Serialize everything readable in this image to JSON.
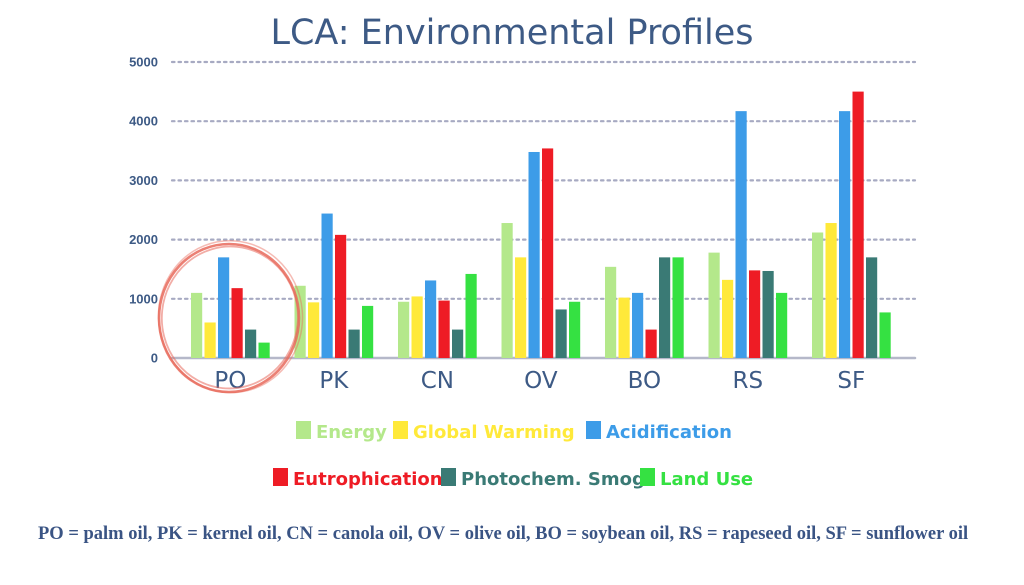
{
  "chart_data": {
    "type": "bar",
    "title": "LCA: Environmental Profiles",
    "xlabel": "",
    "ylabel": "",
    "categories": [
      "PO",
      "PK",
      "CN",
      "OV",
      "BO",
      "RS",
      "SF"
    ],
    "ylim": [
      0,
      5000
    ],
    "yticks": [
      "0",
      "1000",
      "2000",
      "3000",
      "4000",
      "5000"
    ],
    "grid": true,
    "legend_position": "bottom",
    "series": [
      {
        "name": "Energy",
        "color": "#b4e88b",
        "values": [
          1100,
          1220,
          950,
          2280,
          1540,
          1780,
          2120
        ]
      },
      {
        "name": "Global Warming",
        "color": "#ffe93a",
        "values": [
          600,
          940,
          1040,
          1700,
          1020,
          1320,
          2280
        ]
      },
      {
        "name": "Acidification",
        "color": "#3d9ce8",
        "values": [
          1700,
          2440,
          1310,
          3480,
          1100,
          4170,
          4170
        ]
      },
      {
        "name": "Eutrophication",
        "color": "#ee1c25",
        "values": [
          1180,
          2080,
          970,
          3540,
          480,
          1480,
          4500
        ]
      },
      {
        "name": "Photochem. Smog",
        "color": "#3a7a75",
        "values": [
          480,
          480,
          480,
          820,
          1700,
          1470,
          1700
        ]
      },
      {
        "name": "Land Use",
        "color": "#35e142",
        "values": [
          260,
          880,
          1420,
          950,
          1700,
          1100,
          770
        ]
      }
    ],
    "annotations": [
      {
        "type": "circle",
        "target_category": "PO",
        "color": "#e86a5c"
      }
    ]
  },
  "footnote": "PO = palm oil, PK = kernel oil, CN = canola oil, OV = olive oil, BO = soybean oil, RS = rapeseed oil, SF = sunflower oil"
}
